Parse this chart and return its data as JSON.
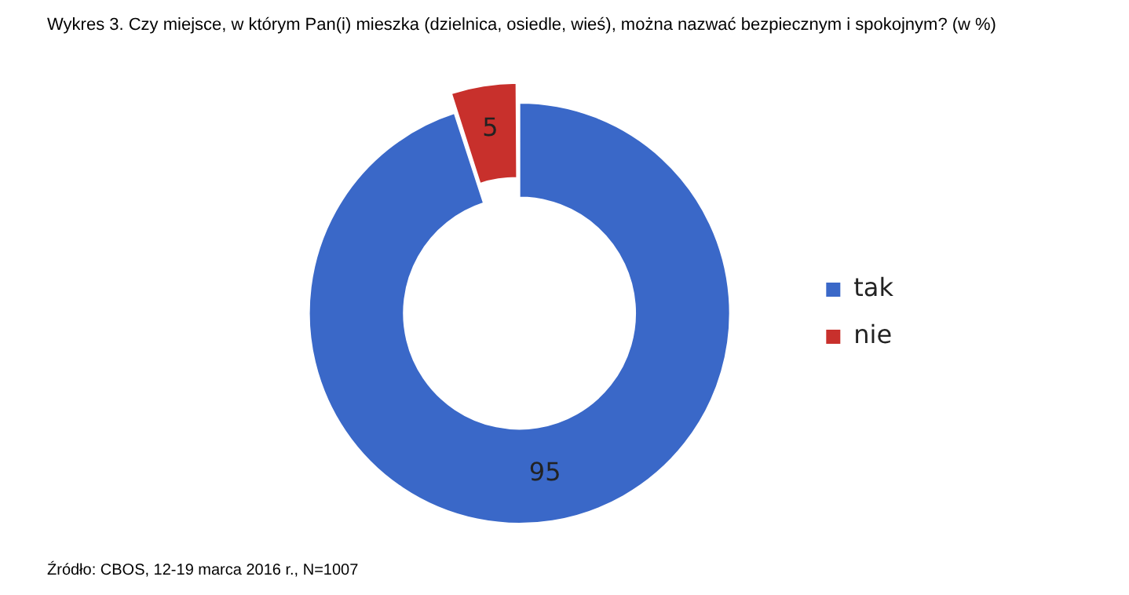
{
  "chart_data": {
    "type": "donut",
    "title": "Wykres 3. Czy miejsce, w którym Pan(i) mieszka (dzielnica, osiedle, wieś), można nazwać bezpiecznym i spokojnym? (w %)",
    "categories": [
      "tak",
      "nie"
    ],
    "values": [
      95,
      5
    ],
    "colors": [
      "#3a68c8",
      "#c8302c"
    ],
    "data_labels": true,
    "legend": "right",
    "annotations": [
      "Źródło: CBOS, 12-19 marca 2016 r., N=1007"
    ]
  }
}
